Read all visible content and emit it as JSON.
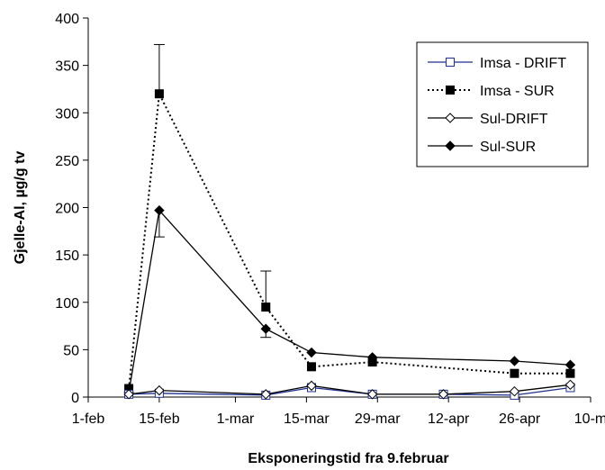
{
  "chart_data": {
    "type": "line",
    "title": "",
    "xlabel": "Eksponeringstid fra 9.februar",
    "ylabel": "Gjelle-Al, µg/g tv",
    "xlim": [
      "2000-02-01",
      "2000-05-10"
    ],
    "ylim": [
      0,
      400
    ],
    "x_ticks": [
      {
        "date": "2000-02-01",
        "label": "1-feb"
      },
      {
        "date": "2000-02-15",
        "label": "15-feb"
      },
      {
        "date": "2000-03-01",
        "label": "1-mar"
      },
      {
        "date": "2000-03-15",
        "label": "15-mar"
      },
      {
        "date": "2000-03-29",
        "label": "29-mar"
      },
      {
        "date": "2000-04-12",
        "label": "12-apr"
      },
      {
        "date": "2000-04-26",
        "label": "26-apr"
      },
      {
        "date": "2000-05-10",
        "label": "10-m"
      }
    ],
    "y_ticks": [
      0,
      50,
      100,
      150,
      200,
      250,
      300,
      350,
      400
    ],
    "grid": false,
    "legend_position": "top-right",
    "series": [
      {
        "name": "Imsa - DRIFT",
        "color": "#1f2f8f",
        "line_style": "solid",
        "marker": "open-square",
        "points": [
          {
            "x": "2000-02-09",
            "y": 3
          },
          {
            "x": "2000-02-15",
            "y": 4
          },
          {
            "x": "2000-03-07",
            "y": 2
          },
          {
            "x": "2000-03-16",
            "y": 10
          },
          {
            "x": "2000-03-28",
            "y": 3
          },
          {
            "x": "2000-04-11",
            "y": 3
          },
          {
            "x": "2000-04-25",
            "y": 2
          },
          {
            "x": "2000-05-06",
            "y": 10
          }
        ]
      },
      {
        "name": "Imsa - SUR",
        "color": "#000000",
        "line_style": "dotted",
        "marker": "filled-square",
        "points": [
          {
            "x": "2000-02-09",
            "y": 9
          },
          {
            "x": "2000-02-15",
            "y": 320,
            "err": 52
          },
          {
            "x": "2000-03-07",
            "y": 95,
            "err": 38
          },
          {
            "x": "2000-03-16",
            "y": 32
          },
          {
            "x": "2000-03-28",
            "y": 37
          },
          {
            "x": "2000-04-25",
            "y": 25
          },
          {
            "x": "2000-05-06",
            "y": 25
          }
        ]
      },
      {
        "name": "Sul-DRIFT",
        "color": "#000000",
        "line_style": "solid",
        "marker": "open-diamond",
        "points": [
          {
            "x": "2000-02-09",
            "y": 3
          },
          {
            "x": "2000-02-15",
            "y": 7
          },
          {
            "x": "2000-03-07",
            "y": 3
          },
          {
            "x": "2000-03-16",
            "y": 12
          },
          {
            "x": "2000-03-28",
            "y": 3
          },
          {
            "x": "2000-04-11",
            "y": 3
          },
          {
            "x": "2000-04-25",
            "y": 6
          },
          {
            "x": "2000-05-06",
            "y": 13
          }
        ]
      },
      {
        "name": "Sul-SUR",
        "color": "#000000",
        "line_style": "solid",
        "marker": "filled-diamond",
        "points": [
          {
            "x": "2000-02-09",
            "y": 5
          },
          {
            "x": "2000-02-15",
            "y": 197,
            "err_low": 28
          },
          {
            "x": "2000-03-07",
            "y": 72,
            "err_low": 9
          },
          {
            "x": "2000-03-16",
            "y": 47
          },
          {
            "x": "2000-03-28",
            "y": 42
          },
          {
            "x": "2000-04-25",
            "y": 38
          },
          {
            "x": "2000-05-06",
            "y": 34
          }
        ]
      }
    ]
  }
}
